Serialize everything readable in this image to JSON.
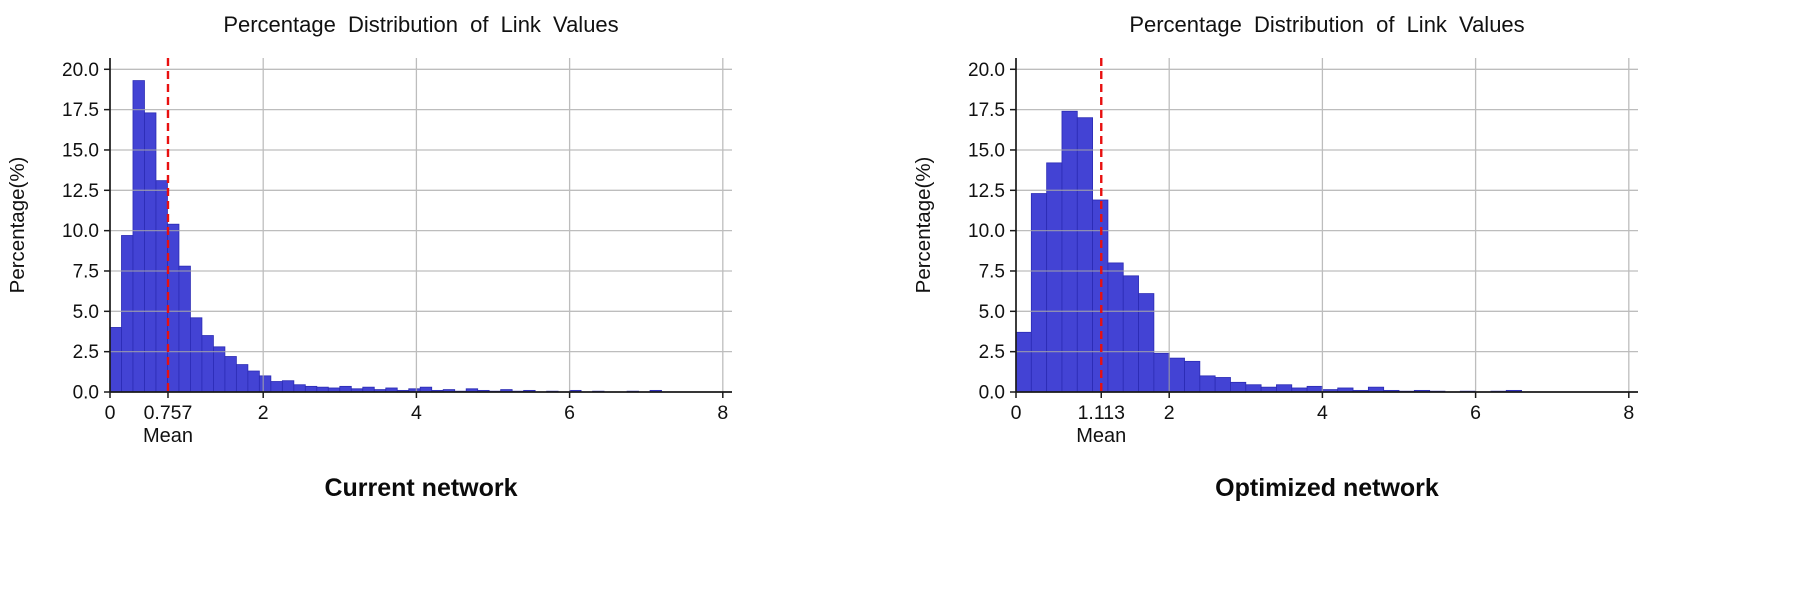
{
  "chart_data": [
    {
      "type": "bar",
      "title": "Percentage Distribution of Link Values",
      "ylabel": "Percentage(%)",
      "xlabel": "",
      "caption": "Current network",
      "xlim": [
        0,
        8.12
      ],
      "ylim": [
        0,
        20.0
      ],
      "yticks": [
        0.0,
        2.5,
        5.0,
        7.5,
        10.0,
        12.5,
        15.0,
        17.5,
        20.0
      ],
      "ytick_labels": [
        "0.0",
        "2.5",
        "5.0",
        "7.5",
        "10.0",
        "12.5",
        "15.0",
        "17.5",
        "20.0"
      ],
      "xticks": [
        0,
        2,
        4,
        6,
        8
      ],
      "xtick_labels": [
        "0",
        "2",
        "4",
        "6",
        "8"
      ],
      "grid": true,
      "legend": false,
      "bin_start": 0,
      "bin_width": 0.15,
      "values": [
        4.0,
        9.7,
        19.3,
        17.3,
        13.1,
        10.4,
        7.8,
        4.6,
        3.5,
        2.8,
        2.2,
        1.7,
        1.3,
        1.0,
        0.65,
        0.7,
        0.45,
        0.35,
        0.3,
        0.25,
        0.35,
        0.2,
        0.3,
        0.15,
        0.25,
        0.1,
        0.2,
        0.3,
        0.1,
        0.15,
        0.05,
        0.2,
        0.1,
        0.05,
        0.15,
        0.05,
        0.1,
        0,
        0.05,
        0,
        0.1,
        0,
        0.05,
        0,
        0,
        0.05,
        0,
        0.1,
        0
      ],
      "mean": 0.757,
      "mean_label": "0.757",
      "mean_caption": "Mean",
      "bar_color": "#4343d4",
      "bar_edge_color": "#2b2bb4",
      "mean_line_color": "#e81010",
      "grid_color": "#a8a8a8",
      "axis_color": "#1a1a1a",
      "text_color": "#111111"
    },
    {
      "type": "bar",
      "title": "Percentage Distribution of Link Values",
      "ylabel": "Percentage(%)",
      "xlabel": "",
      "caption": "Optimized network",
      "xlim": [
        0,
        8.12
      ],
      "ylim": [
        0,
        20.0
      ],
      "yticks": [
        0.0,
        2.5,
        5.0,
        7.5,
        10.0,
        12.5,
        15.0,
        17.5,
        20.0
      ],
      "ytick_labels": [
        "0.0",
        "2.5",
        "5.0",
        "7.5",
        "10.0",
        "12.5",
        "15.0",
        "17.5",
        "20.0"
      ],
      "xticks": [
        0,
        2,
        4,
        6,
        8
      ],
      "xtick_labels": [
        "0",
        "2",
        "4",
        "6",
        "8"
      ],
      "grid": true,
      "legend": false,
      "bin_start": 0,
      "bin_width": 0.2,
      "values": [
        3.7,
        12.3,
        14.2,
        17.4,
        17.0,
        11.9,
        8.0,
        7.2,
        6.1,
        2.4,
        2.1,
        1.9,
        1.0,
        0.9,
        0.6,
        0.45,
        0.3,
        0.45,
        0.25,
        0.35,
        0.15,
        0.25,
        0.1,
        0.3,
        0.1,
        0.05,
        0.1,
        0.05,
        0,
        0.05,
        0,
        0.05,
        0.1,
        0
      ],
      "mean": 1.113,
      "mean_label": "1.113",
      "mean_caption": "Mean",
      "bar_color": "#4343d4",
      "bar_edge_color": "#2b2bb4",
      "mean_line_color": "#e81010",
      "grid_color": "#a8a8a8",
      "axis_color": "#1a1a1a",
      "text_color": "#111111"
    }
  ]
}
